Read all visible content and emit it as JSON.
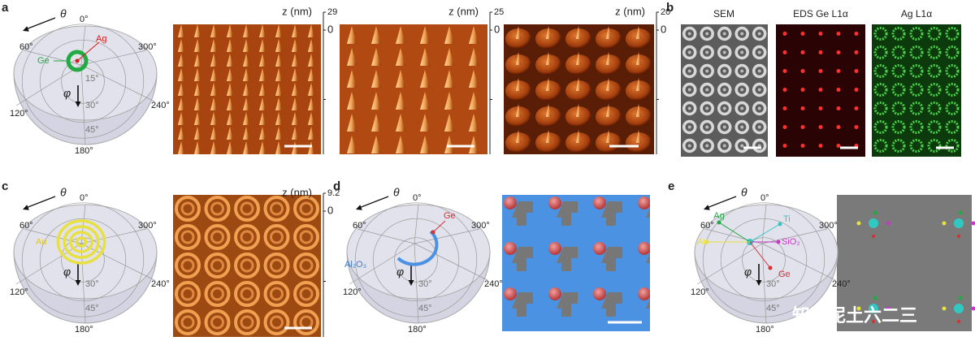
{
  "panels": {
    "a": {
      "letter": "a",
      "diagram": {
        "theta": "θ",
        "phi": "φ",
        "azimuth": [
          "0°",
          "60°",
          "300°",
          "120°",
          "240°",
          "180°"
        ],
        "polar": [
          "15°",
          "30°",
          "45°"
        ],
        "materials": [
          "Ag",
          "Ge"
        ]
      },
      "afm": [
        {
          "axis": "z (nm)",
          "top": "29",
          "bottom": "0"
        },
        {
          "axis": "z (nm)",
          "top": "25",
          "bottom": "0"
        },
        {
          "axis": "z (nm)",
          "top": "20",
          "bottom": "0"
        }
      ]
    },
    "b": {
      "letter": "b",
      "maps": [
        "SEM",
        "EDS Ge L1α",
        "Ag L1α"
      ]
    },
    "c": {
      "letter": "c",
      "diagram": {
        "theta": "θ",
        "phi": "φ",
        "azimuth": [
          "0°",
          "60°",
          "300°",
          "120°",
          "240°",
          "180°"
        ],
        "polar": [
          "30°",
          "45°"
        ],
        "materials": [
          "Au"
        ]
      },
      "afm": [
        {
          "axis": "z (nm)",
          "top": "9.2",
          "bottom": "0"
        }
      ]
    },
    "d": {
      "letter": "d",
      "diagram": {
        "theta": "θ",
        "phi": "φ",
        "azimuth": [
          "0°",
          "60°",
          "300°",
          "120°",
          "240°",
          "180°"
        ],
        "polar": [
          "30°",
          "45°"
        ],
        "materials": [
          "Ge",
          "Al₂O₃"
        ]
      }
    },
    "e": {
      "letter": "e",
      "diagram": {
        "theta": "θ",
        "phi": "φ",
        "azimuth": [
          "0°",
          "60°",
          "300°",
          "120°",
          "240°",
          "180°"
        ],
        "polar": [
          "30°",
          "45°"
        ],
        "materials": [
          "Ag",
          "Ti",
          "Au",
          "SiO₂",
          "Ge"
        ]
      }
    }
  },
  "watermark": "知识泥土六二三"
}
